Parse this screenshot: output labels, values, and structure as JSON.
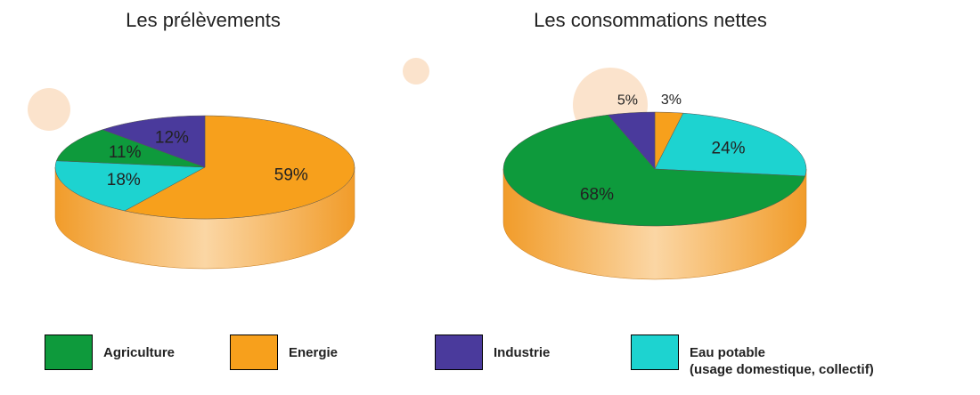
{
  "chart_data": [
    {
      "type": "pie",
      "title": "Les prélèvements",
      "categories": [
        "Agriculture",
        "Energie",
        "Industrie",
        "Eau potable\n(usage domestique, collectif)"
      ],
      "values": [
        11,
        59,
        12,
        18
      ],
      "value_labels": [
        "11%",
        "59%",
        "12%",
        "18%"
      ],
      "colors": [
        "#0e9a3c",
        "#f7a01c",
        "#4a3a9c",
        "#1dd3d0"
      ]
    },
    {
      "type": "pie",
      "title": "Les consommations nettes",
      "categories": [
        "Agriculture",
        "Energie",
        "Industrie",
        "Eau potable\n(usage domestique, collectif)"
      ],
      "values": [
        68,
        3,
        5,
        24
      ],
      "value_labels": [
        "68%",
        "3%",
        "5%",
        "24%"
      ],
      "colors": [
        "#0e9a3c",
        "#f7a01c",
        "#4a3a9c",
        "#1dd3d0"
      ]
    }
  ]
}
